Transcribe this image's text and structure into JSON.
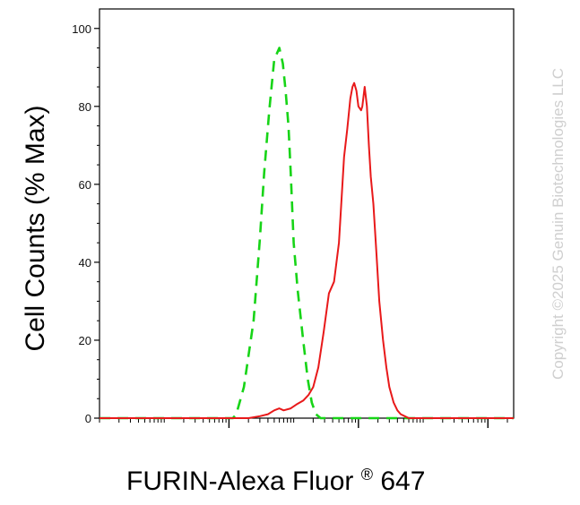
{
  "chart_data": {
    "type": "line",
    "xlabel": "FURIN-Alexa Fluor",
    "xlabel_superscript": "®",
    "xlabel_suffix": " 647",
    "ylabel": "Cell Counts (% Max)",
    "x_scale": "log",
    "xlim": [
      1,
      2500000
    ],
    "ylim": [
      0,
      105
    ],
    "y_ticks": [
      0,
      20,
      40,
      60,
      80,
      100
    ],
    "x_major_ticks": [
      100,
      10000,
      1000000
    ],
    "grid": false,
    "legend": "none",
    "series": [
      {
        "color": "#17d417",
        "dash": "dashed",
        "x": [
          1,
          90,
          115,
          130,
          170,
          240,
          300,
          350,
          420,
          500,
          600,
          680,
          750,
          830,
          900,
          1000,
          1150,
          1400,
          1650,
          1900,
          2200,
          2600,
          3400,
          5000,
          10000,
          100000,
          2500000
        ],
        "values": [
          0,
          0,
          0,
          1,
          8,
          25,
          46,
          63,
          79,
          92,
          95,
          91,
          84,
          75,
          63,
          45,
          33,
          20,
          10,
          4,
          1,
          0,
          0,
          0,
          0,
          0,
          0
        ]
      },
      {
        "color": "#e8191a",
        "dash": "solid",
        "x": [
          1,
          100,
          200,
          300,
          400,
          500,
          600,
          700,
          900,
          1100,
          1400,
          1700,
          2000,
          2400,
          2900,
          3500,
          4200,
          5000,
          6000,
          6700,
          7500,
          8100,
          8600,
          9300,
          10000,
          11000,
          11500,
          12500,
          13500,
          14500,
          15500,
          17000,
          19000,
          21000,
          24000,
          27000,
          30000,
          35000,
          40000,
          45000,
          52000,
          60000,
          70000,
          85000,
          110000,
          160000,
          250000,
          2500000
        ],
        "values": [
          0,
          0,
          0,
          0.5,
          1,
          2,
          2.5,
          2,
          2.5,
          3.5,
          4.5,
          6,
          8,
          13,
          22,
          32,
          35,
          45,
          67,
          74,
          82,
          85,
          86,
          84,
          80,
          79,
          80,
          85,
          80,
          70,
          62,
          55,
          42,
          30,
          20,
          13,
          8,
          4,
          2,
          1,
          0.5,
          0,
          0,
          0,
          0,
          0,
          0,
          0
        ]
      }
    ]
  },
  "watermark": "Copyright ©2025 Genuin Biotechnologies LLC"
}
